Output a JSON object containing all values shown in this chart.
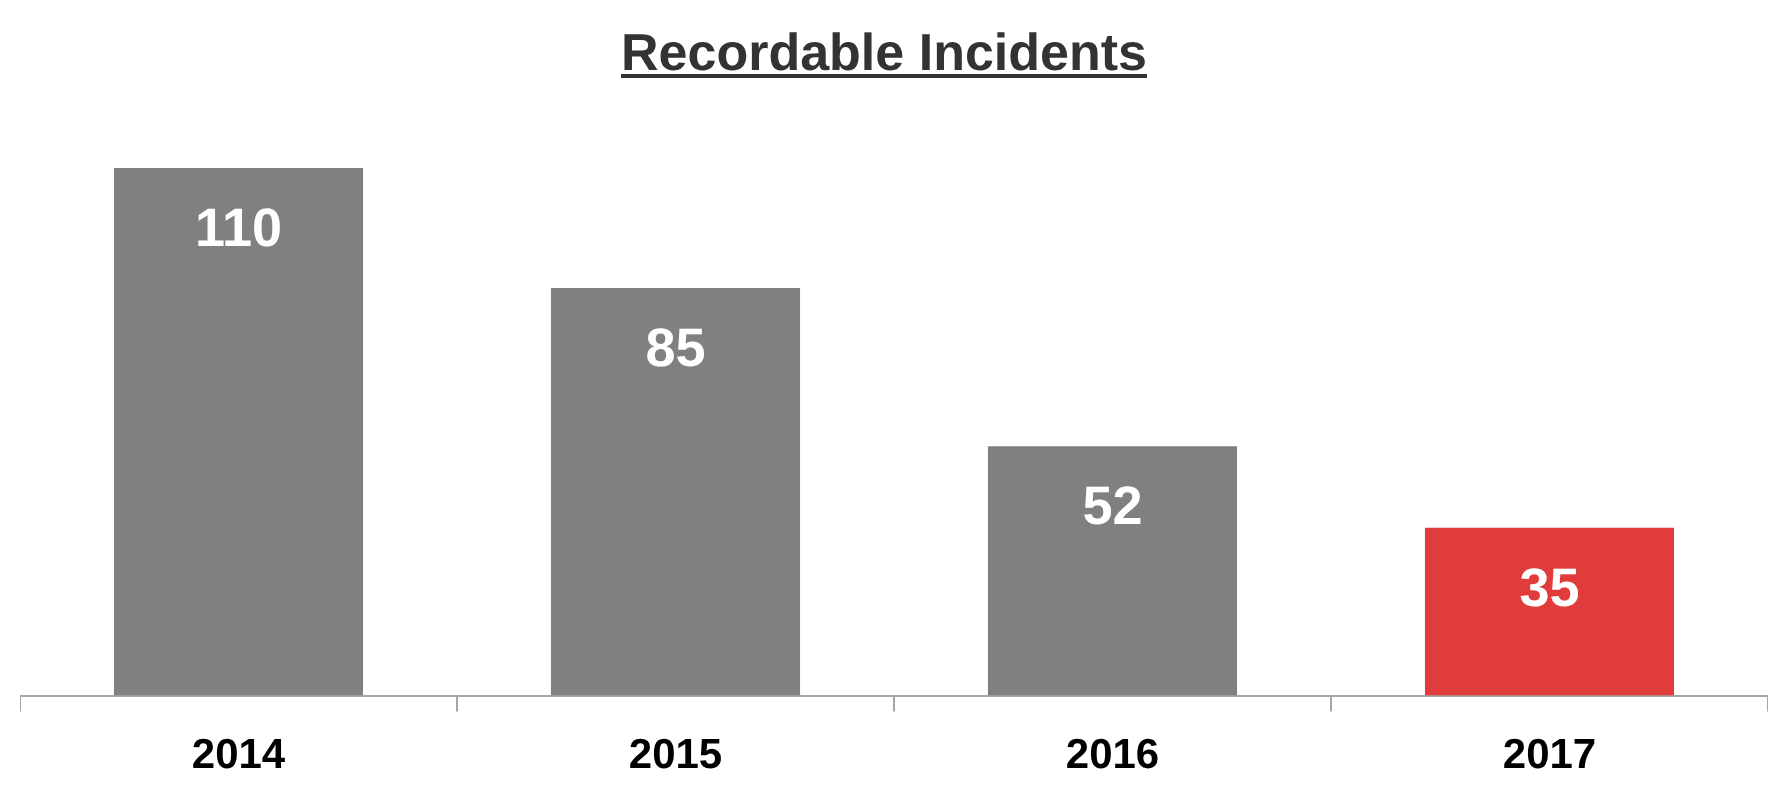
{
  "chart_data": {
    "type": "bar",
    "title": "Recordable Incidents",
    "categories": [
      "2014",
      "2015",
      "2016",
      "2017"
    ],
    "values": [
      110,
      85,
      52,
      35
    ],
    "colors": [
      "#808080",
      "#808080",
      "#808080",
      "#e03c3c"
    ],
    "data_labels": true,
    "grid": false,
    "legend": false
  }
}
